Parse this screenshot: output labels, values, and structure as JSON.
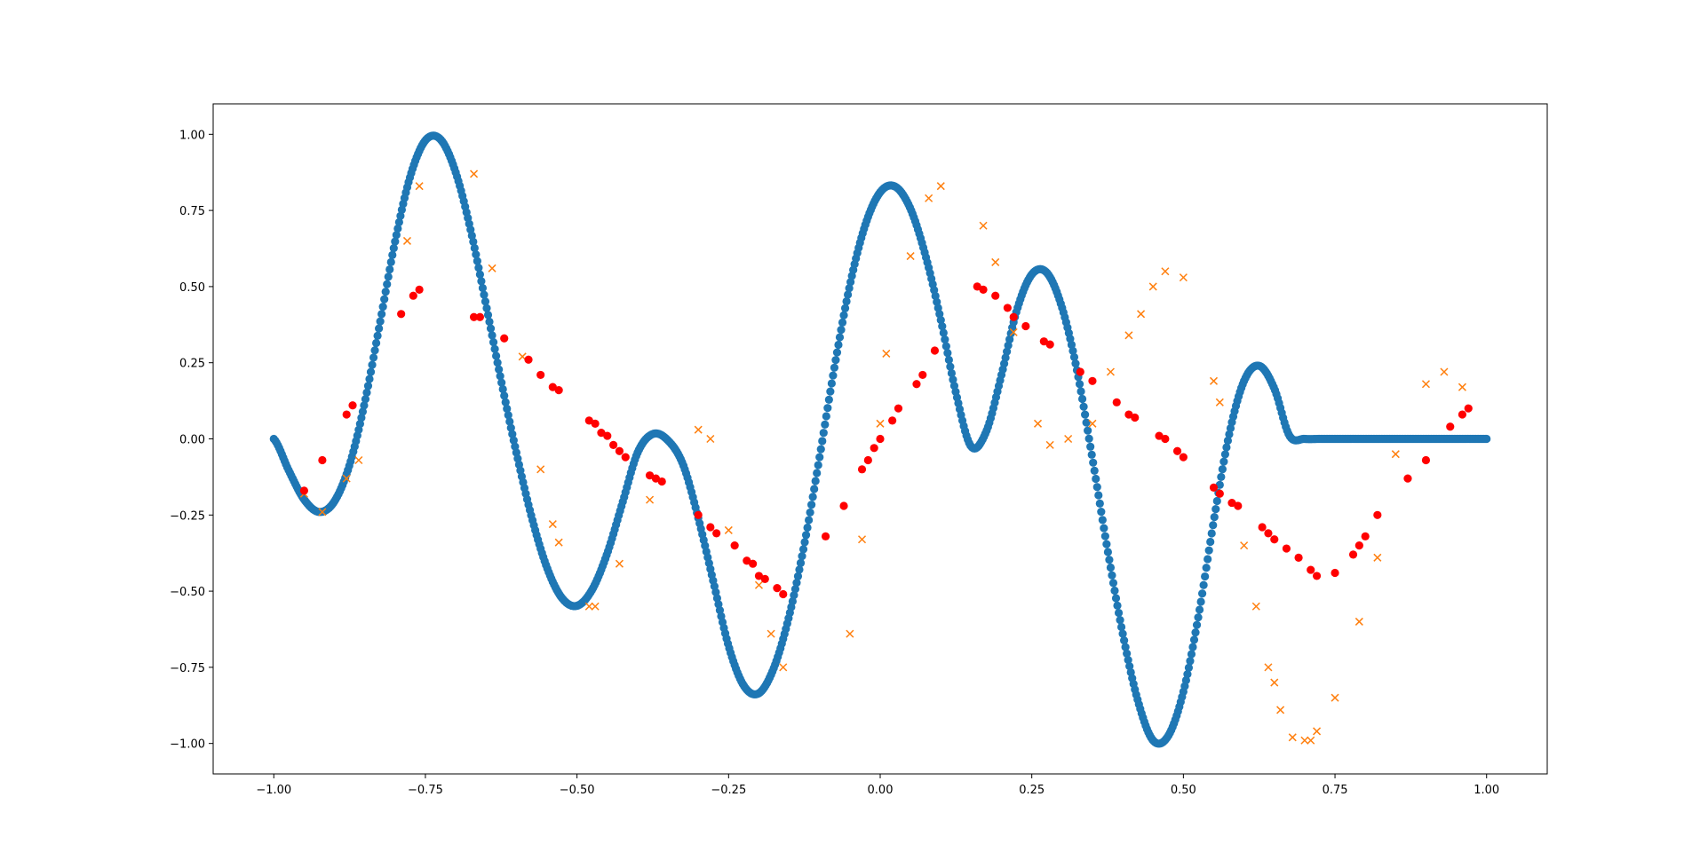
{
  "chart_data": {
    "type": "scatter",
    "title": "",
    "xlabel": "",
    "ylabel": "",
    "xlim": [
      -1.1,
      1.1
    ],
    "ylim": [
      -1.1,
      1.1
    ],
    "grid": false,
    "x_ticks": [
      -1.0,
      -0.75,
      -0.5,
      -0.25,
      0.0,
      0.25,
      0.5,
      0.75,
      1.0
    ],
    "x_tick_labels": [
      "−1.00",
      "−0.75",
      "−0.50",
      "−0.25",
      "0.00",
      "0.25",
      "0.50",
      "0.75",
      "1.00"
    ],
    "y_ticks": [
      1.0,
      0.75,
      0.5,
      0.25,
      0.0,
      -0.25,
      -0.5,
      -0.75,
      -1.0
    ],
    "y_tick_labels": [
      "1.00",
      "0.75",
      "0.50",
      "0.25",
      "0.00",
      "−0.25",
      "−0.50",
      "−0.75",
      "−1.00"
    ],
    "series": [
      {
        "marker": "circle",
        "color": "#1f77b4",
        "description_values": "dense sampled curve",
        "x": [
          -1.0,
          -0.975,
          -0.95,
          -0.925,
          -0.9,
          -0.875,
          -0.85,
          -0.825,
          -0.8,
          -0.775,
          -0.75,
          -0.725,
          -0.7,
          -0.675,
          -0.65,
          -0.625,
          -0.6,
          -0.575,
          -0.55,
          -0.525,
          -0.5,
          -0.475,
          -0.45,
          -0.425,
          -0.4,
          -0.375,
          -0.35,
          -0.325,
          -0.3,
          -0.275,
          -0.25,
          -0.225,
          -0.2,
          -0.175,
          -0.15,
          -0.125,
          -0.1,
          -0.075,
          -0.05,
          -0.025,
          0.0,
          0.025,
          0.05,
          0.075,
          0.1,
          0.125,
          0.15,
          0.175,
          0.2,
          0.225,
          0.25,
          0.275,
          0.3,
          0.325,
          0.35,
          0.375,
          0.4,
          0.425,
          0.45,
          0.475,
          0.5,
          0.525,
          0.55,
          0.575,
          0.6,
          0.625,
          0.65,
          0.675,
          0.7,
          0.725,
          0.75,
          0.775,
          0.8,
          0.825,
          0.85,
          0.875,
          0.9,
          0.925,
          0.95,
          0.975,
          1.0
        ],
        "y": [
          0.0,
          -0.105,
          -0.199,
          -0.24,
          -0.205,
          -0.085,
          0.12,
          0.38,
          0.648,
          0.862,
          0.98,
          0.983,
          0.875,
          0.682,
          0.44,
          0.19,
          -0.045,
          -0.255,
          -0.42,
          -0.522,
          -0.548,
          -0.495,
          -0.375,
          -0.21,
          -0.045,
          0.016,
          -0.005,
          -0.085,
          -0.26,
          -0.47,
          -0.68,
          -0.81,
          -0.835,
          -0.75,
          -0.58,
          -0.345,
          -0.06,
          0.24,
          0.505,
          0.7,
          0.81,
          0.828,
          0.755,
          0.6,
          0.39,
          0.15,
          -0.025,
          0.025,
          0.21,
          0.42,
          0.54,
          0.545,
          0.43,
          0.22,
          -0.065,
          -0.365,
          -0.64,
          -0.86,
          -0.99,
          -0.975,
          -0.83,
          -0.58,
          -0.27,
          0.01,
          0.19,
          0.24,
          0.165,
          0.01,
          0.0,
          0.0,
          0.0,
          0.0,
          0.0,
          0.0,
          0.0,
          0.0,
          0.0,
          0.0,
          0.0,
          0.0,
          0.0
        ]
      },
      {
        "marker": "x",
        "color": "#ff7f0e",
        "x": [
          -0.95,
          -0.92,
          -0.88,
          -0.86,
          -0.78,
          -0.76,
          -0.67,
          -0.64,
          -0.59,
          -0.56,
          -0.54,
          -0.53,
          -0.48,
          -0.47,
          -0.43,
          -0.38,
          -0.3,
          -0.28,
          -0.25,
          -0.2,
          -0.18,
          -0.16,
          -0.05,
          -0.03,
          0.0,
          0.01,
          0.05,
          0.08,
          0.1,
          0.17,
          0.19,
          0.22,
          0.26,
          0.28,
          0.31,
          0.35,
          0.38,
          0.41,
          0.43,
          0.45,
          0.47,
          0.5,
          0.55,
          0.56,
          0.6,
          0.62,
          0.64,
          0.65,
          0.66,
          0.68,
          0.7,
          0.71,
          0.72,
          0.75,
          0.79,
          0.82,
          0.85,
          0.9,
          0.93,
          0.96
        ],
        "y": [
          -0.18,
          -0.24,
          -0.13,
          -0.07,
          0.65,
          0.83,
          0.87,
          0.56,
          0.27,
          -0.1,
          -0.28,
          -0.34,
          -0.55,
          -0.55,
          -0.41,
          -0.2,
          0.03,
          0.0,
          -0.3,
          -0.48,
          -0.64,
          -0.75,
          -0.64,
          -0.33,
          0.05,
          0.28,
          0.6,
          0.79,
          0.83,
          0.7,
          0.58,
          0.35,
          0.05,
          -0.02,
          0.0,
          0.05,
          0.22,
          0.34,
          0.41,
          0.5,
          0.55,
          0.53,
          0.19,
          0.12,
          -0.35,
          -0.55,
          -0.75,
          -0.8,
          -0.89,
          -0.98,
          -0.99,
          -0.99,
          -0.96,
          -0.85,
          -0.6,
          -0.39,
          -0.05,
          0.18,
          0.22,
          0.17
        ]
      },
      {
        "marker": "circle",
        "color": "#ff0000",
        "x": [
          -0.95,
          -0.92,
          -0.88,
          -0.87,
          -0.79,
          -0.77,
          -0.76,
          -0.67,
          -0.66,
          -0.62,
          -0.58,
          -0.56,
          -0.54,
          -0.53,
          -0.48,
          -0.47,
          -0.46,
          -0.45,
          -0.44,
          -0.43,
          -0.42,
          -0.38,
          -0.37,
          -0.36,
          -0.3,
          -0.28,
          -0.27,
          -0.24,
          -0.22,
          -0.21,
          -0.2,
          -0.19,
          -0.17,
          -0.16,
          -0.09,
          -0.06,
          -0.03,
          -0.02,
          -0.01,
          0.0,
          0.02,
          0.03,
          0.06,
          0.07,
          0.09,
          0.16,
          0.17,
          0.19,
          0.21,
          0.22,
          0.24,
          0.27,
          0.28,
          0.33,
          0.35,
          0.39,
          0.41,
          0.42,
          0.46,
          0.47,
          0.49,
          0.5,
          0.55,
          0.56,
          0.58,
          0.59,
          0.63,
          0.64,
          0.65,
          0.67,
          0.69,
          0.71,
          0.72,
          0.75,
          0.78,
          0.79,
          0.8,
          0.82,
          0.87,
          0.9,
          0.94,
          0.96,
          0.97
        ],
        "y": [
          -0.17,
          -0.07,
          0.08,
          0.11,
          0.41,
          0.47,
          0.49,
          0.4,
          0.4,
          0.33,
          0.26,
          0.21,
          0.17,
          0.16,
          0.06,
          0.05,
          0.02,
          0.01,
          -0.02,
          -0.04,
          -0.06,
          -0.12,
          -0.13,
          -0.14,
          -0.25,
          -0.29,
          -0.31,
          -0.35,
          -0.4,
          -0.41,
          -0.45,
          -0.46,
          -0.49,
          -0.51,
          -0.32,
          -0.22,
          -0.1,
          -0.07,
          -0.03,
          0.0,
          0.06,
          0.1,
          0.18,
          0.21,
          0.29,
          0.5,
          0.49,
          0.47,
          0.43,
          0.4,
          0.37,
          0.32,
          0.31,
          0.22,
          0.19,
          0.12,
          0.08,
          0.07,
          0.01,
          0.0,
          -0.04,
          -0.06,
          -0.16,
          -0.18,
          -0.21,
          -0.22,
          -0.29,
          -0.31,
          -0.33,
          -0.36,
          -0.39,
          -0.43,
          -0.45,
          -0.44,
          -0.38,
          -0.35,
          -0.32,
          -0.25,
          -0.13,
          -0.07,
          0.04,
          0.08,
          0.1
        ]
      }
    ]
  }
}
